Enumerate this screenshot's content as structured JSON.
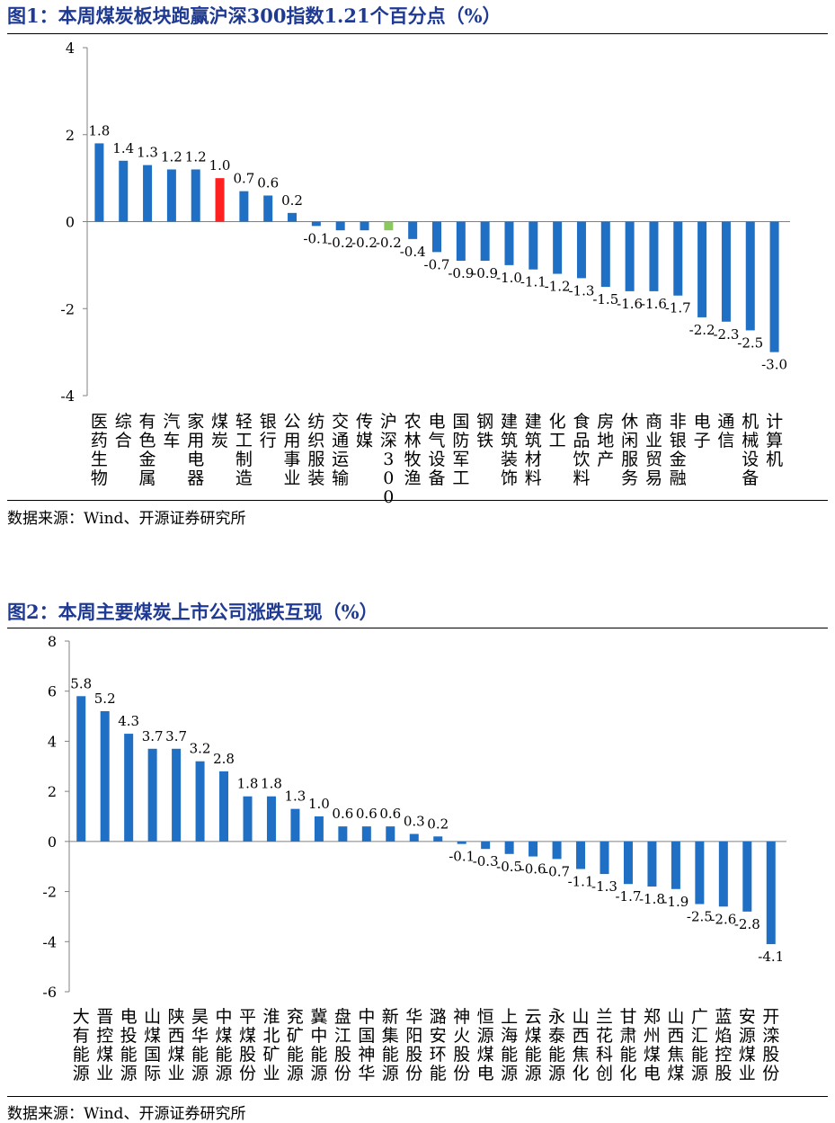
{
  "chart_data": [
    {
      "type": "bar",
      "title": "图1：本周煤炭板块跑赢沪深300指数1.21个百分点（%）",
      "source": "数据来源：Wind、开源证券研究所",
      "ylim": [
        -4,
        4
      ],
      "yticks": [
        4,
        2,
        0,
        -2,
        -4
      ],
      "categories": [
        "医药生物",
        "综合",
        "有色金属",
        "汽车",
        "家用电器",
        "煤炭",
        "轻工制造",
        "银行",
        "公用事业",
        "纺织服装",
        "交通运输",
        "传媒",
        "沪深300",
        "农林牧渔",
        "电气设备",
        "国防军工",
        "钢铁",
        "建筑装饰",
        "建筑材料",
        "化工",
        "食品饮料",
        "房地产",
        "休闲服务",
        "商业贸易",
        "非银金融",
        "电子",
        "通信",
        "机械设备",
        "计算机"
      ],
      "values": [
        1.8,
        1.4,
        1.3,
        1.2,
        1.2,
        1.0,
        0.7,
        0.6,
        0.2,
        -0.1,
        -0.2,
        -0.2,
        -0.2,
        -0.4,
        -0.7,
        -0.9,
        -0.9,
        -1.0,
        -1.1,
        -1.2,
        -1.3,
        -1.5,
        -1.6,
        -1.6,
        -1.7,
        -2.2,
        -2.3,
        -2.5,
        -3.0
      ],
      "value_labels": [
        "1.8",
        "1.4",
        "1.3",
        "1.2",
        "1.2",
        "1.0",
        "0.7",
        "0.6",
        "0.2",
        "-0.1",
        "-0.2",
        "-0.2",
        "-0.2",
        "-0.4",
        "-0.7",
        "-0.9",
        "-0.9",
        "-1.0",
        "-1.1",
        "-1.2",
        "-1.3",
        "-1.5",
        "-1.6",
        "-1.6",
        "-1.7",
        "-2.2",
        "-2.3",
        "-2.5",
        "-3.0"
      ],
      "colors": {
        "default": "#1f6fc5",
        "煤炭": "#ff2020",
        "沪深300": "#8cc860"
      },
      "grid": false
    },
    {
      "type": "bar",
      "title": "图2：本周主要煤炭上市公司涨跌互现（%）",
      "source": "数据来源：Wind、开源证券研究所",
      "ylim": [
        -6,
        8
      ],
      "yticks": [
        8,
        6,
        4,
        2,
        0,
        -2,
        -4,
        -6
      ],
      "categories": [
        "大有能源",
        "晋控煤业",
        "电投能源",
        "山煤国际",
        "陕西煤业",
        "昊华能源",
        "中煤能源",
        "平煤股份",
        "淮北矿业",
        "兖矿能源",
        "冀中能源",
        "盘江股份",
        "中国神华",
        "新集能源",
        "华阳股份",
        "潞安环能",
        "神火股份",
        "恒源煤电",
        "上海能源",
        "云煤能源",
        "永泰能源",
        "山西焦化",
        "兰花科创",
        "甘肃能化",
        "郑州煤电",
        "山西焦煤",
        "广汇能源",
        "蓝焰控股",
        "安源煤业",
        "开滦股份"
      ],
      "values": [
        5.8,
        5.2,
        4.3,
        3.7,
        3.7,
        3.2,
        2.8,
        1.8,
        1.8,
        1.3,
        1.0,
        0.6,
        0.6,
        0.6,
        0.3,
        0.2,
        -0.1,
        -0.3,
        -0.5,
        -0.6,
        -0.7,
        -1.1,
        -1.3,
        -1.7,
        -1.8,
        -1.9,
        -2.5,
        -2.6,
        -2.8,
        -4.1
      ],
      "value_labels": [
        "5.8",
        "5.2",
        "4.3",
        "3.7",
        "3.7",
        "3.2",
        "2.8",
        "1.8",
        "1.8",
        "1.3",
        "1.0",
        "0.6",
        "0.6",
        "0.6",
        "0.3",
        "0.2",
        "-0.1",
        "-0.3",
        "-0.5",
        "-0.6",
        "-0.7",
        "-1.1",
        "-1.3",
        "-1.7",
        "-1.8",
        "-1.9",
        "-2.5",
        "-2.6",
        "-2.8",
        "-4.1"
      ],
      "colors": {
        "default": "#1f6fc5"
      },
      "grid": false
    }
  ]
}
